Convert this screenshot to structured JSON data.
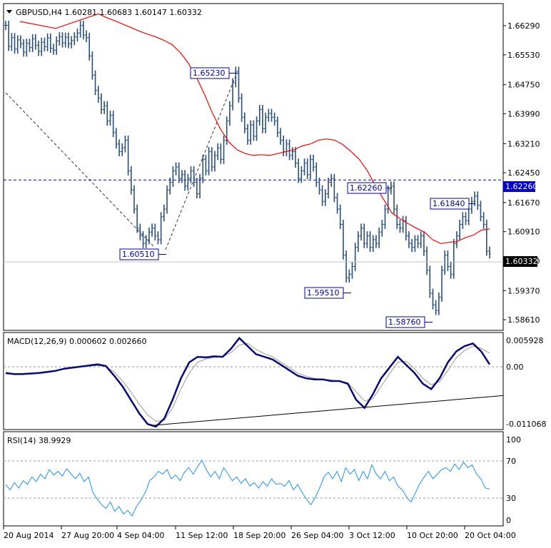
{
  "chart_data": [
    {
      "type": "candlestick",
      "panel": "main",
      "title": "GBPUSD,H4 1.60281 1.60683 1.60147 1.60332",
      "symbol": "GBPUSD",
      "timeframe": "H4",
      "ohlc": {
        "open": "1.60281",
        "high": "1.60683",
        "low": "1.60147",
        "close": "1.60332"
      },
      "ylim": [
        1.5835,
        1.6685
      ],
      "yticks": [
        "1.66290",
        "1.65530",
        "1.64750",
        "1.63990",
        "1.63210",
        "1.62450",
        "1.61670",
        "1.60910",
        "1.60150",
        "1.59370",
        "1.58610"
      ],
      "current_price": "1.60332",
      "hline": {
        "value": 1.6226,
        "label": "1.62260",
        "color": "#0000cc"
      },
      "annotations": [
        {
          "label": "1.65230",
          "value": 1.6523
        },
        {
          "label": "1.62260",
          "value": 1.6226
        },
        {
          "label": "1.61840",
          "value": 1.6184
        },
        {
          "label": "1.60510",
          "value": 1.6051
        },
        {
          "label": "1.59510",
          "value": 1.5951
        },
        {
          "label": "1.58760",
          "value": 1.5876
        }
      ],
      "series": [
        {
          "kind": "price",
          "color": "#2a4f7a",
          "values": [
            1.663,
            1.6575,
            1.6598,
            1.6568,
            1.6592,
            1.6582,
            1.656,
            1.6583,
            1.6572,
            1.6595,
            1.6578,
            1.6562,
            1.6586,
            1.6574,
            1.6597,
            1.657,
            1.6565,
            1.6589,
            1.66,
            1.6584,
            1.6599,
            1.6582,
            1.659,
            1.66,
            1.661,
            1.663,
            1.6605,
            1.6598,
            1.655,
            1.65,
            1.646,
            1.644,
            1.641,
            1.642,
            1.638,
            1.6395,
            1.635,
            1.632,
            1.63,
            1.631,
            1.633,
            1.625,
            1.62,
            1.615,
            1.61,
            1.608,
            1.606,
            1.607,
            1.609,
            1.61,
            1.608,
            1.607,
            1.613,
            1.615,
            1.62,
            1.622,
            1.625,
            1.626,
            1.623,
            1.624,
            1.621,
            1.623,
            1.625,
            1.622,
            1.619,
            1.623,
            1.628,
            1.625,
            1.63,
            1.626,
            1.629,
            1.631,
            1.628,
            1.633,
            1.638,
            1.642,
            1.648,
            1.651,
            1.644,
            1.639,
            1.636,
            1.633,
            1.637,
            1.634,
            1.638,
            1.641,
            1.636,
            1.639,
            1.64,
            1.639,
            1.638,
            1.635,
            1.633,
            1.63,
            1.632,
            1.629,
            1.63,
            1.627,
            1.623,
            1.625,
            1.627,
            1.624,
            1.628,
            1.626,
            1.622,
            1.62,
            1.617,
            1.619,
            1.622,
            1.623,
            1.618,
            1.615,
            1.611,
            1.603,
            1.597,
            1.598,
            1.6,
            1.605,
            1.608,
            1.61,
            1.606,
            1.608,
            1.605,
            1.607,
            1.606,
            1.609,
            1.611,
            1.615,
            1.62,
            1.621,
            1.615,
            1.611,
            1.61,
            1.612,
            1.608,
            1.606,
            1.605,
            1.607,
            1.606,
            1.608,
            1.604,
            1.599,
            1.593,
            1.59,
            1.5885,
            1.592,
            1.599,
            1.603,
            1.6,
            1.598,
            1.606,
            1.608,
            1.611,
            1.613,
            1.612,
            1.615,
            1.617,
            1.6184,
            1.616,
            1.613,
            1.611,
            1.604,
            1.6033
          ]
        },
        {
          "kind": "moving_average",
          "color": "#ff0000",
          "values": [
            1.666,
            1.665,
            1.6642,
            1.6633,
            1.6624,
            1.6615,
            1.6607,
            1.66,
            1.6591,
            1.658,
            1.656,
            1.6532,
            1.6495,
            1.645,
            1.64,
            1.6358,
            1.6325,
            1.6305,
            1.6295,
            1.629,
            1.6292,
            1.629,
            1.6295,
            1.63,
            1.6305,
            1.6315,
            1.632,
            1.633,
            1.6333,
            1.633,
            1.6318,
            1.63,
            1.628,
            1.625,
            1.621,
            1.6175,
            1.614,
            1.6125,
            1.6112,
            1.61,
            1.609,
            1.607,
            1.606,
            1.6063,
            1.6065,
            1.6075,
            1.6082,
            1.6095,
            1.6098
          ]
        }
      ],
      "xlabels": [
        "20 Aug 2014",
        "27 Aug 20:00",
        "4 Sep 04:00",
        "11 Sep 12:00",
        "18 Sep 20:00",
        "26 Sep 04:00",
        "3 Oct 12:00",
        "10 Oct 20:00",
        "20 Oct 04:00"
      ]
    },
    {
      "type": "line",
      "panel": "macd",
      "title": "MACD(12,26,9) 0.000602 0.002660",
      "indicator": "MACD(12,26,9)",
      "values_text": [
        "0.000602",
        "0.002660"
      ],
      "ylim": [
        -0.0114,
        0.0064
      ],
      "yticks": [
        "0.005928",
        "0.00",
        "-0.011068"
      ],
      "series": [
        {
          "kind": "macd",
          "color": "#0a0a78",
          "values": [
            -0.001,
            -0.0012,
            -0.0012,
            -0.0011,
            -0.001,
            -0.0008,
            -0.0006,
            -0.0002,
            0.0,
            0.0002,
            0.0004,
            0.0006,
            0.0003,
            -0.0015,
            -0.0035,
            -0.006,
            -0.0085,
            -0.0105,
            -0.011,
            -0.0095,
            -0.006,
            -0.002,
            0.001,
            0.002,
            0.0019,
            0.0021,
            0.002,
            0.0035,
            0.0055,
            0.004,
            0.0025,
            0.002,
            0.0015,
            0.0005,
            -0.0005,
            -0.0015,
            -0.002,
            -0.0022,
            -0.0022,
            -0.0025,
            -0.0025,
            -0.003,
            -0.006,
            -0.0075,
            -0.005,
            -0.002,
            0.0,
            0.002,
            0.0005,
            -0.001,
            -0.003,
            -0.004,
            -0.002,
            0.001,
            0.003,
            0.004,
            0.0045,
            0.003,
            0.0006
          ]
        },
        {
          "kind": "signal",
          "color": "#9a9a9a",
          "values": [
            -0.0012,
            -0.0012,
            -0.0011,
            -0.001,
            -0.0009,
            -0.0007,
            -0.0005,
            -0.0003,
            -0.0001,
            0.0001,
            0.0003,
            0.0004,
            0.0002,
            -0.0008,
            -0.0025,
            -0.0045,
            -0.0068,
            -0.0088,
            -0.01,
            -0.0098,
            -0.0075,
            -0.004,
            -0.001,
            0.001,
            0.0016,
            0.0019,
            0.002,
            0.0028,
            0.0042,
            0.0045,
            0.0034,
            0.0026,
            0.002,
            0.001,
            0.0,
            -0.001,
            -0.0016,
            -0.002,
            -0.0022,
            -0.0023,
            -0.0025,
            -0.0028,
            -0.0045,
            -0.0062,
            -0.0058,
            -0.0035,
            -0.0012,
            0.001,
            0.0012,
            -0.0002,
            -0.002,
            -0.0032,
            -0.0026,
            -0.0005,
            0.0018,
            0.0032,
            0.004,
            0.0036,
            0.0027
          ]
        }
      ],
      "trendline": {
        "from": -0.0108,
        "to": -0.0052,
        "color": "#000000"
      }
    },
    {
      "type": "line",
      "panel": "rsi",
      "title": "RSI(14) 38.9929",
      "indicator": "RSI(14)",
      "current_value": "38.9929",
      "ylim": [
        0,
        100
      ],
      "yticks": [
        "100",
        "70",
        "30",
        "0"
      ],
      "levels": [
        70,
        30
      ],
      "series": [
        {
          "kind": "rsi",
          "color": "#1e90ff",
          "values": [
            44,
            38,
            46,
            40,
            48,
            44,
            52,
            47,
            55,
            50,
            60,
            54,
            58,
            53,
            61,
            55,
            50,
            56,
            47,
            52,
            35,
            28,
            22,
            18,
            25,
            15,
            20,
            12,
            16,
            10,
            20,
            27,
            35,
            48,
            52,
            58,
            55,
            60,
            50,
            54,
            48,
            57,
            62,
            55,
            63,
            70,
            60,
            52,
            58,
            50,
            62,
            55,
            48,
            52,
            45,
            50,
            42,
            46,
            40,
            47,
            42,
            50,
            44,
            45,
            42,
            48,
            38,
            44,
            35,
            28,
            22,
            30,
            40,
            52,
            57,
            50,
            58,
            47,
            62,
            55,
            60,
            48,
            58,
            50,
            65,
            55,
            50,
            58,
            48,
            52,
            42,
            38,
            30,
            25,
            35,
            45,
            52,
            58,
            50,
            55,
            60,
            62,
            58,
            66,
            60,
            68,
            62,
            65,
            55,
            50,
            40,
            39
          ]
        }
      ]
    }
  ]
}
